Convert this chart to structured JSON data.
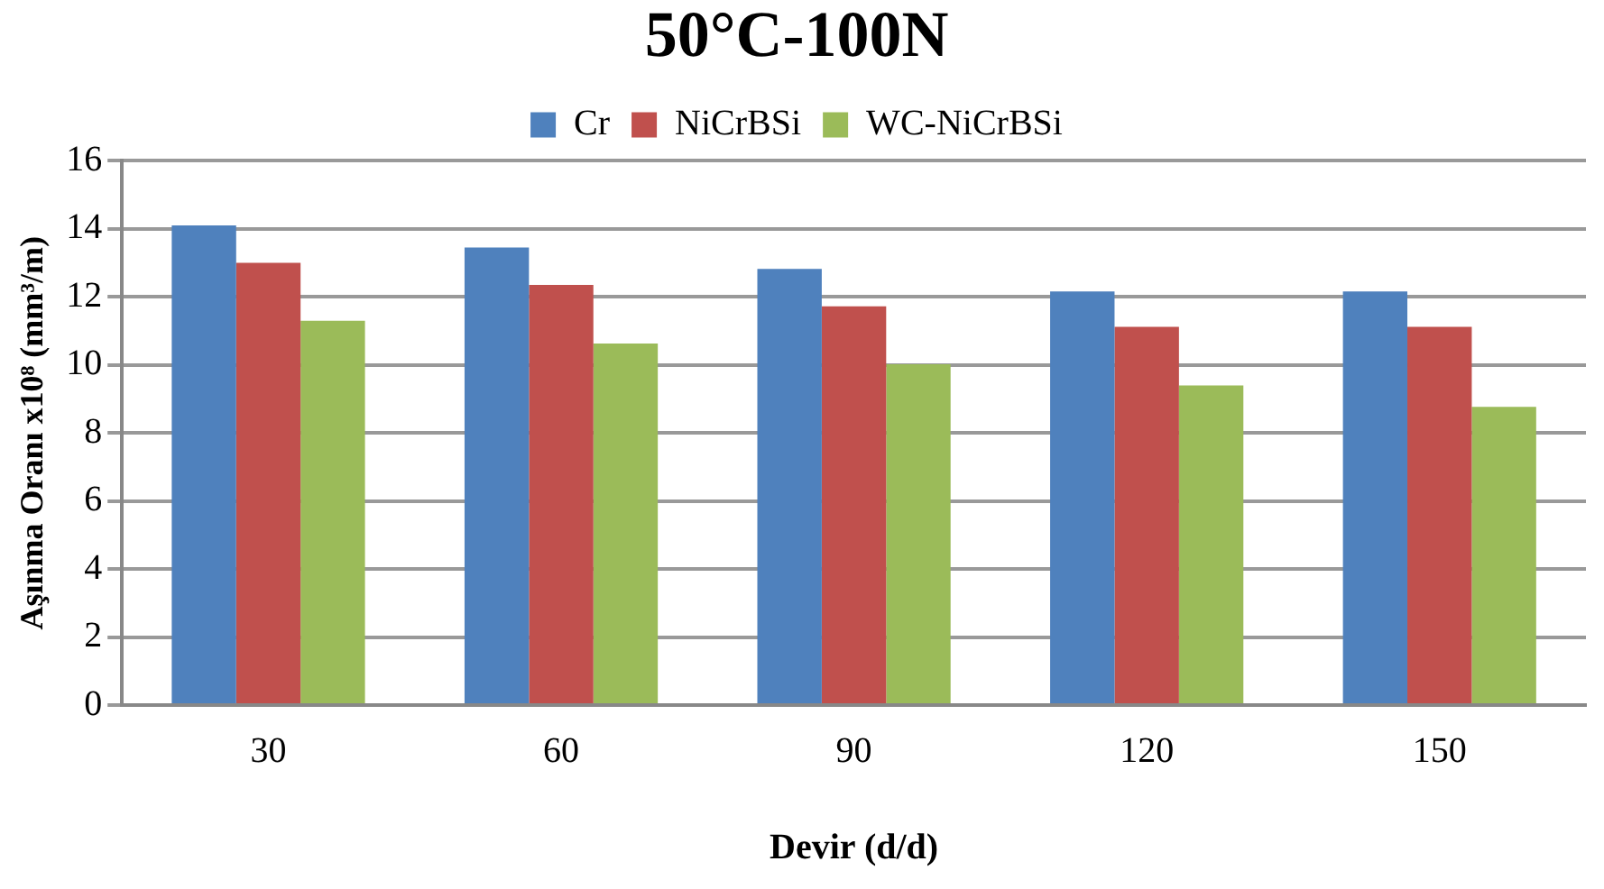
{
  "chart_data": {
    "type": "bar",
    "title": "50°C-100N",
    "xlabel": "Devir (d/d)",
    "ylabel": "Aşınma Oranı x10⁸ (mm³/m)",
    "categories": [
      "30",
      "60",
      "90",
      "120",
      "150"
    ],
    "series": [
      {
        "name": "Cr",
        "color": "#4f81bd",
        "values": [
          14.1,
          13.45,
          12.82,
          12.16,
          12.16
        ]
      },
      {
        "name": "NiCrBSi",
        "color": "#c0504d",
        "values": [
          13.0,
          12.35,
          11.72,
          11.12,
          11.12
        ]
      },
      {
        "name": "WC-NiCrBSi",
        "color": "#9bbb59",
        "values": [
          11.3,
          10.63,
          10.02,
          9.4,
          8.77
        ]
      }
    ],
    "ylim": [
      0,
      16
    ],
    "yticks": [
      0,
      2,
      4,
      6,
      8,
      10,
      12,
      14,
      16
    ],
    "grid": "y",
    "legend": "top"
  }
}
